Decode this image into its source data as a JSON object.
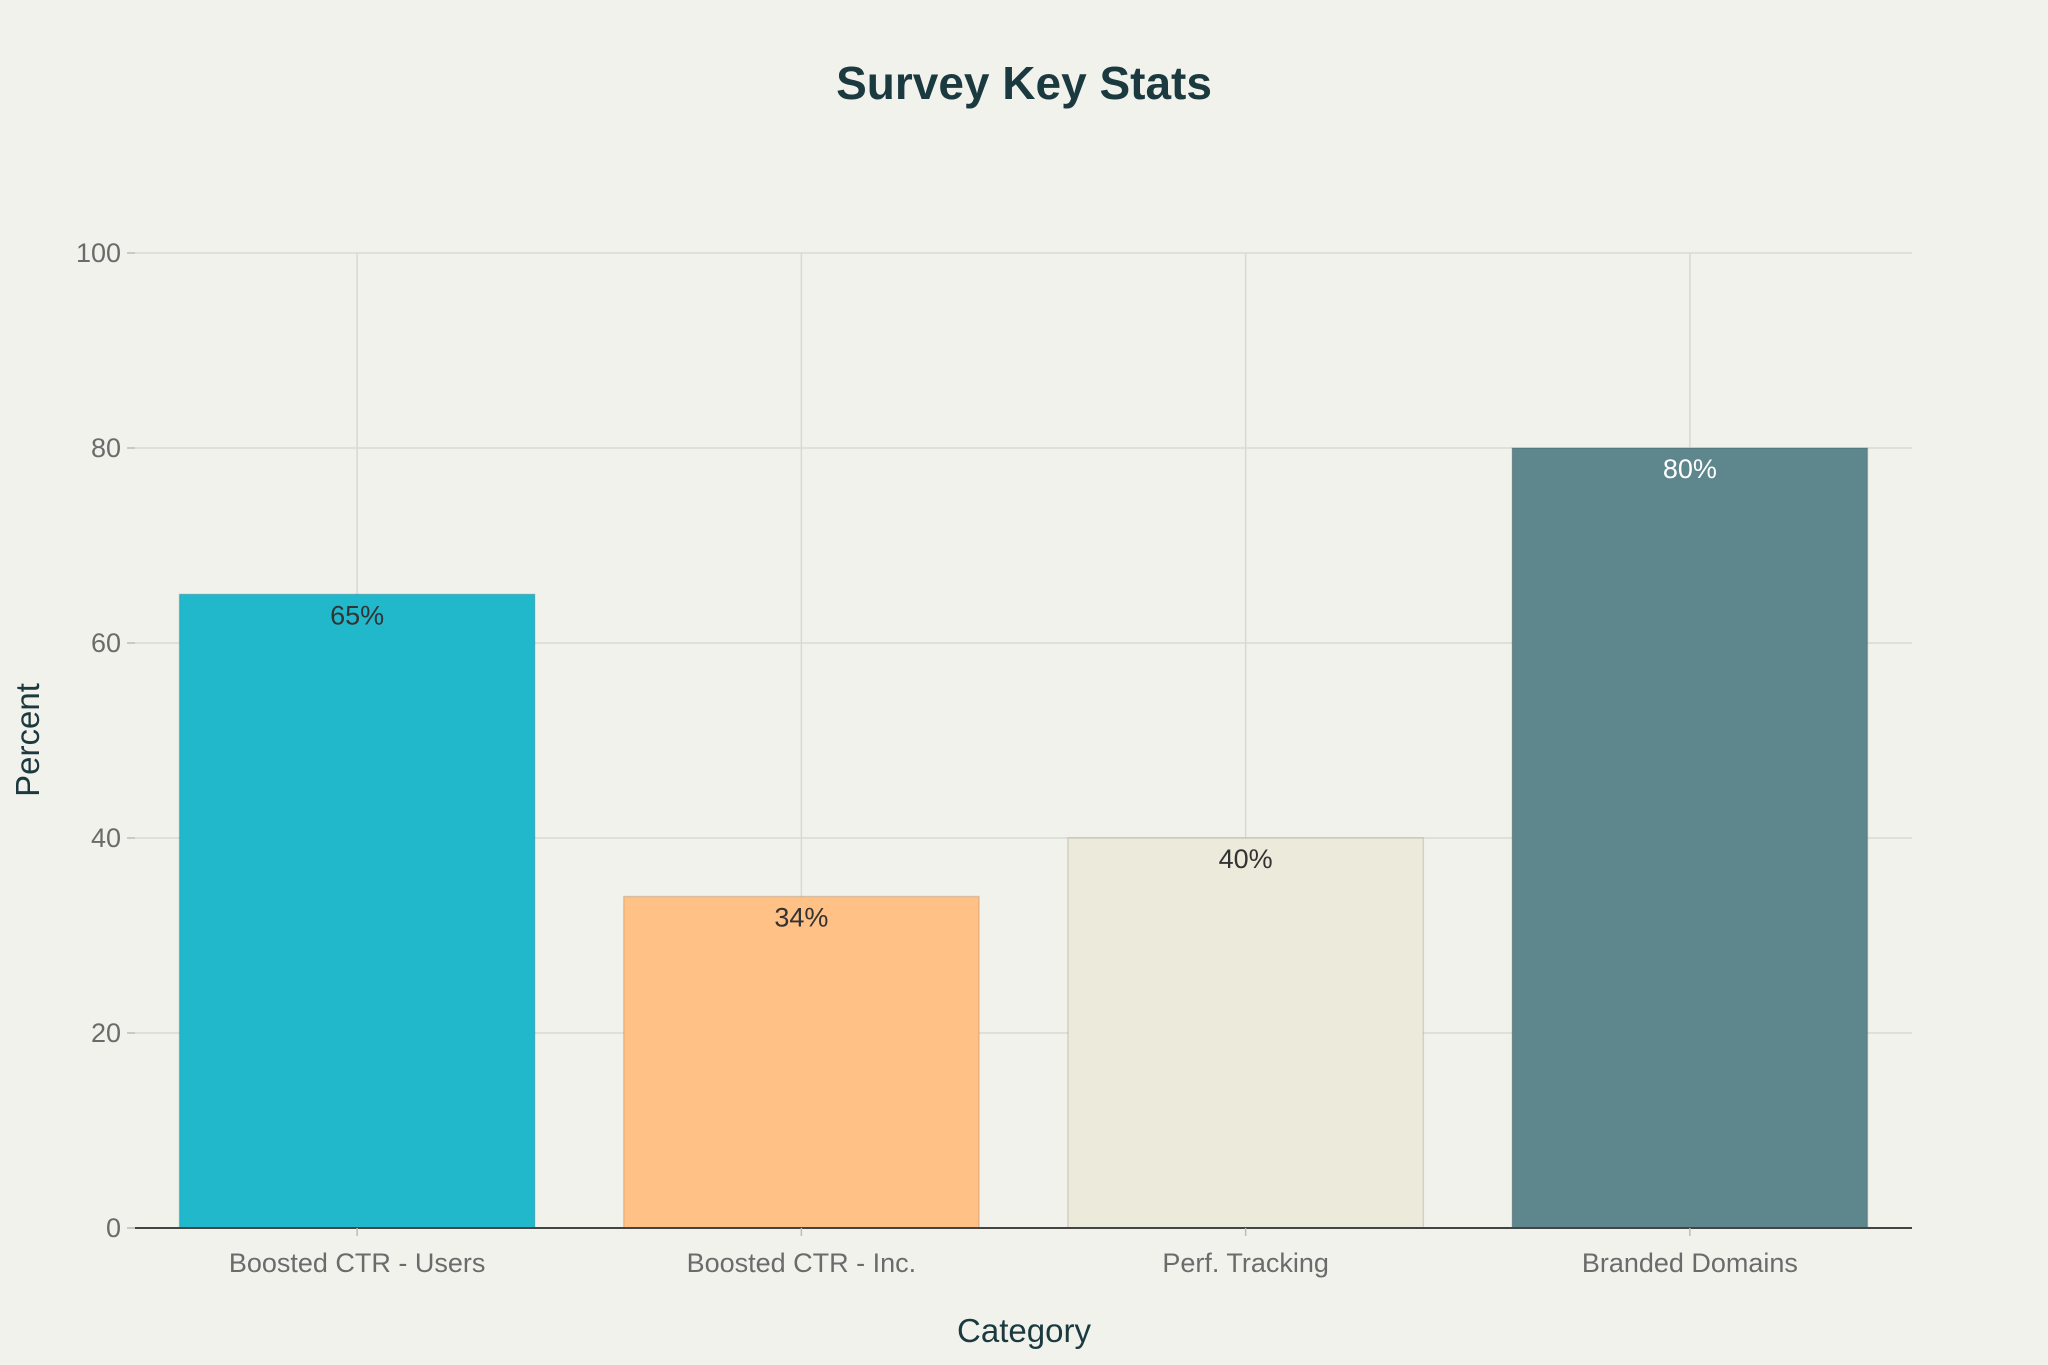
{
  "chart_data": {
    "type": "bar",
    "title": "Survey Key Stats",
    "xlabel": "Category",
    "ylabel": "Percent",
    "categories": [
      "Boosted CTR - Users",
      "Boosted CTR - Inc.",
      "Perf. Tracking",
      "Branded Domains"
    ],
    "values": [
      65,
      34,
      40,
      80
    ],
    "data_labels": [
      "65%",
      "34%",
      "40%",
      "80%"
    ],
    "bar_colors": [
      "#22b8cc",
      "#ffc186",
      "#eceadb",
      "#5e868d"
    ],
    "label_colors": [
      "#333333",
      "#333333",
      "#333333",
      "#ffffff"
    ],
    "ylim": [
      0,
      100
    ],
    "yticks": [
      0,
      20,
      40,
      60,
      80,
      100
    ],
    "grid": true,
    "legend": "none"
  }
}
